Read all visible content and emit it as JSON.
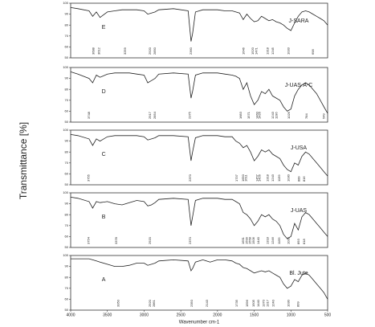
{
  "chart_data": {
    "type": "line",
    "xlabel": "Wavenumber cm-1",
    "ylabel": "Transmittance [%]",
    "xlim": [
      4000,
      500
    ],
    "xticks": [
      4000,
      3500,
      3000,
      2500,
      2000,
      1500,
      1000,
      500
    ],
    "color": "#222222",
    "x": [
      4000,
      3900,
      3750,
      3700,
      3650,
      3600,
      3500,
      3400,
      3300,
      3200,
      3100,
      3000,
      2950,
      2900,
      2850,
      2800,
      2600,
      2400,
      2360,
      2340,
      2300,
      2200,
      2100,
      2000,
      1900,
      1800,
      1750,
      1700,
      1650,
      1600,
      1550,
      1500,
      1450,
      1400,
      1350,
      1300,
      1250,
      1200,
      1150,
      1100,
      1050,
      1000,
      950,
      900,
      850,
      800,
      750,
      700,
      650,
      600,
      550,
      500
    ],
    "panels": [
      {
        "name": "J-SARA",
        "letter": "E",
        "ylim": [
          50,
          100
        ],
        "yticks": [
          50,
          60,
          70,
          80,
          90,
          100
        ],
        "values": [
          96,
          95,
          93,
          88,
          92,
          87,
          92,
          93,
          94,
          94,
          94,
          93,
          90,
          91,
          92,
          94,
          95,
          93,
          65,
          72,
          92,
          94,
          94,
          94,
          93,
          93,
          92,
          91,
          85,
          90,
          86,
          83,
          84,
          88,
          86,
          84,
          85,
          83,
          82,
          80,
          77,
          75,
          82,
          88,
          92,
          93,
          92,
          90,
          88,
          86,
          84,
          80
        ],
        "peaks": [
          3688,
          3612,
          3259,
          2920,
          2850,
          2360,
          1646,
          1520,
          1471,
          1318,
          1245,
          1033,
          698
        ]
      },
      {
        "name": "J-UAS-A-C",
        "letter": "D",
        "ylim": [
          50,
          100
        ],
        "yticks": [
          50,
          60,
          70,
          80,
          90,
          100
        ],
        "values": [
          96,
          94,
          90,
          86,
          93,
          91,
          94,
          95,
          95,
          95,
          94,
          93,
          86,
          88,
          90,
          94,
          95,
          94,
          72,
          78,
          93,
          95,
          95,
          95,
          94,
          93,
          92,
          90,
          80,
          86,
          74,
          66,
          70,
          78,
          76,
          80,
          74,
          72,
          70,
          64,
          60,
          62,
          74,
          80,
          84,
          86,
          84,
          80,
          76,
          70,
          64,
          58
        ],
        "peaks": [
          3748,
          2917,
          2854,
          2375,
          1683,
          1571,
          1460,
          1426,
          1243,
          1196,
          1026,
          784,
          549
        ]
      },
      {
        "name": "J-USA",
        "letter": "C",
        "ylim": [
          50,
          100
        ],
        "yticks": [
          50,
          60,
          70,
          80,
          90,
          100
        ],
        "values": [
          96,
          95,
          92,
          86,
          92,
          90,
          94,
          95,
          95,
          95,
          95,
          94,
          91,
          92,
          93,
          95,
          95,
          94,
          72,
          80,
          93,
          95,
          95,
          95,
          94,
          94,
          90,
          88,
          84,
          86,
          80,
          72,
          76,
          82,
          80,
          82,
          78,
          76,
          74,
          68,
          64,
          62,
          70,
          68,
          76,
          80,
          78,
          74,
          70,
          66,
          62,
          58
        ],
        "peaks": [
          3755,
          2370,
          1737,
          1650,
          1611,
          1457,
          1426,
          1318,
          1243,
          1159,
          1030,
          889,
          816
        ]
      },
      {
        "name": "J-UAS",
        "letter": "B",
        "ylim": [
          50,
          100
        ],
        "yticks": [
          50,
          60,
          70,
          80,
          90,
          100
        ],
        "values": [
          96,
          95,
          92,
          86,
          92,
          91,
          92,
          90,
          89,
          91,
          93,
          92,
          88,
          89,
          91,
          94,
          95,
          94,
          70,
          78,
          93,
          95,
          95,
          95,
          94,
          94,
          92,
          90,
          82,
          80,
          76,
          70,
          74,
          80,
          78,
          80,
          76,
          74,
          70,
          62,
          58,
          60,
          72,
          66,
          78,
          82,
          80,
          76,
          72,
          68,
          64,
          60
        ],
        "peaks": [
          3754,
          3378,
          2920,
          2370,
          1651,
          1599,
          1558,
          1506,
          1440,
          1318,
          1246,
          1155,
          1033,
          893,
          818
        ]
      },
      {
        "name": "Bl. Jute",
        "letter": "A",
        "ylim": [
          50,
          100
        ],
        "yticks": [
          50,
          60,
          70,
          80,
          90,
          100
        ],
        "values": [
          97,
          97,
          97,
          96,
          95,
          94,
          92,
          90,
          90,
          91,
          93,
          93,
          91,
          92,
          93,
          95,
          96,
          95,
          86,
          88,
          94,
          96,
          94,
          96,
          96,
          95,
          93,
          92,
          89,
          88,
          86,
          84,
          85,
          86,
          85,
          86,
          84,
          82,
          80,
          74,
          70,
          72,
          78,
          76,
          82,
          84,
          82,
          78,
          74,
          70,
          66,
          60
        ],
        "peaks": [
          3350,
          2920,
          2861,
          2350,
          2143,
          1735,
          1596,
          1505,
          1440,
          1370,
          1317,
          1240,
          1030,
          899
        ]
      }
    ]
  }
}
